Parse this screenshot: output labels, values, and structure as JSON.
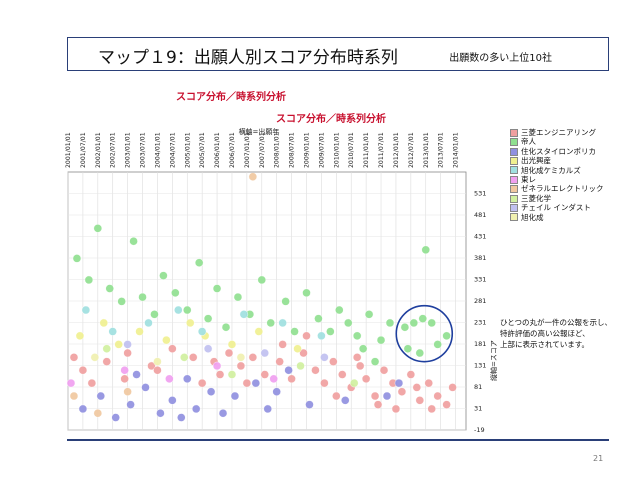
{
  "header": {
    "title": "マップ１9：出願人別スコア分布時系列",
    "note": "出願数の多い上位10社"
  },
  "subtitle1": "スコア分布／時系列分析",
  "subtitle2": "スコア分布／時系列分析",
  "note_lines": [
    "ひとつの丸が一件の公報を示し、",
    "特許評価の高い公報ほど、",
    "上部に表示されています。"
  ],
  "page_number": "21",
  "colors": {
    "frame": "#2a3f78",
    "highlight_circle": "#1f3f9e",
    "subtitle": "#c8102e"
  },
  "chart_data": {
    "type": "scatter",
    "xlabel": "横軸=出願年",
    "ylabel": "縦軸=スコア",
    "x_ticks": [
      "2001/01/01",
      "2001/07/01",
      "2002/01/01",
      "2002/07/01",
      "2003/01/01",
      "2003/07/01",
      "2004/01/01",
      "2004/07/01",
      "2005/01/01",
      "2005/07/01",
      "2006/01/01",
      "2006/07/01",
      "2007/01/01",
      "2007/07/01",
      "2008/01/01",
      "2008/07/01",
      "2009/01/01",
      "2009/07/01",
      "2010/01/01",
      "2010/07/01",
      "2011/01/01",
      "2011/07/01",
      "2012/01/01",
      "2012/07/01",
      "2013/01/01",
      "2013/07/01",
      "2014/01/01"
    ],
    "y_ticks": [
      531,
      481,
      431,
      381,
      331,
      281,
      231,
      181,
      131,
      81,
      31,
      -19
    ],
    "ylim": [
      -19,
      581
    ],
    "xlim": [
      2001.0,
      2014.35
    ],
    "series": [
      {
        "name": "三菱エンジニアリング",
        "color": "#f0a0a0",
        "points": [
          [
            2001.2,
            150
          ],
          [
            2001.5,
            120
          ],
          [
            2002.3,
            140
          ],
          [
            2003.0,
            160
          ],
          [
            2003.8,
            130
          ],
          [
            2004.5,
            170
          ],
          [
            2005.2,
            150
          ],
          [
            2005.9,
            140
          ],
          [
            2006.4,
            160
          ],
          [
            2006.8,
            130
          ],
          [
            2007.2,
            150
          ],
          [
            2007.6,
            110
          ],
          [
            2008.1,
            140
          ],
          [
            2008.5,
            100
          ],
          [
            2008.9,
            160
          ],
          [
            2009.3,
            120
          ],
          [
            2009.6,
            90
          ],
          [
            2009.9,
            140
          ],
          [
            2010.2,
            110
          ],
          [
            2010.5,
            80
          ],
          [
            2010.8,
            130
          ],
          [
            2011.0,
            100
          ],
          [
            2011.3,
            60
          ],
          [
            2011.6,
            120
          ],
          [
            2011.9,
            90
          ],
          [
            2012.2,
            70
          ],
          [
            2012.5,
            110
          ],
          [
            2012.8,
            50
          ],
          [
            2013.1,
            90
          ],
          [
            2013.4,
            60
          ],
          [
            2013.7,
            40
          ],
          [
            2013.9,
            80
          ],
          [
            2010.0,
            60
          ],
          [
            2010.7,
            150
          ],
          [
            2011.4,
            40
          ],
          [
            2012.0,
            30
          ],
          [
            2012.7,
            80
          ],
          [
            2013.2,
            30
          ],
          [
            2009.0,
            200
          ],
          [
            2008.2,
            180
          ],
          [
            2007.0,
            90
          ],
          [
            2006.1,
            110
          ],
          [
            2005.5,
            90
          ],
          [
            2004.0,
            120
          ],
          [
            2002.9,
            100
          ],
          [
            2001.8,
            90
          ]
        ]
      },
      {
        "name": "帝人",
        "color": "#90e090",
        "points": [
          [
            2001.3,
            380
          ],
          [
            2001.7,
            330
          ],
          [
            2002.0,
            450
          ],
          [
            2002.4,
            310
          ],
          [
            2002.8,
            280
          ],
          [
            2003.2,
            420
          ],
          [
            2003.5,
            290
          ],
          [
            2003.9,
            250
          ],
          [
            2004.2,
            340
          ],
          [
            2004.6,
            300
          ],
          [
            2005.0,
            260
          ],
          [
            2005.4,
            370
          ],
          [
            2005.7,
            240
          ],
          [
            2006.0,
            310
          ],
          [
            2006.3,
            220
          ],
          [
            2006.7,
            290
          ],
          [
            2007.1,
            250
          ],
          [
            2007.5,
            330
          ],
          [
            2007.8,
            230
          ],
          [
            2008.3,
            280
          ],
          [
            2008.6,
            210
          ],
          [
            2009.0,
            300
          ],
          [
            2009.4,
            240
          ],
          [
            2009.8,
            210
          ],
          [
            2010.1,
            260
          ],
          [
            2010.4,
            230
          ],
          [
            2010.7,
            200
          ],
          [
            2011.1,
            250
          ],
          [
            2011.5,
            190
          ],
          [
            2011.8,
            230
          ],
          [
            2012.3,
            220
          ],
          [
            2012.6,
            230
          ],
          [
            2012.9,
            240
          ],
          [
            2013.2,
            230
          ],
          [
            2013.4,
            180
          ],
          [
            2013.7,
            200
          ],
          [
            2013.0,
            400
          ],
          [
            2012.4,
            170
          ],
          [
            2012.8,
            160
          ],
          [
            2011.3,
            140
          ],
          [
            2010.9,
            170
          ]
        ]
      },
      {
        "name": "住化スタイロンポリカ",
        "color": "#9090e0",
        "points": [
          [
            2001.5,
            30
          ],
          [
            2002.1,
            60
          ],
          [
            2002.6,
            10
          ],
          [
            2003.1,
            40
          ],
          [
            2003.6,
            80
          ],
          [
            2004.1,
            20
          ],
          [
            2004.5,
            50
          ],
          [
            2005.0,
            100
          ],
          [
            2005.3,
            30
          ],
          [
            2005.8,
            70
          ],
          [
            2006.2,
            20
          ],
          [
            2006.6,
            60
          ],
          [
            2007.3,
            90
          ],
          [
            2007.7,
            30
          ],
          [
            2008.0,
            70
          ],
          [
            2008.4,
            120
          ],
          [
            2009.1,
            40
          ],
          [
            2010.3,
            50
          ],
          [
            2011.7,
            60
          ],
          [
            2012.1,
            90
          ],
          [
            2004.8,
            10
          ],
          [
            2003.3,
            110
          ]
        ]
      },
      {
        "name": "出光興産",
        "color": "#f0f090",
        "points": [
          [
            2001.4,
            200
          ],
          [
            2002.2,
            230
          ],
          [
            2002.7,
            180
          ],
          [
            2003.4,
            210
          ],
          [
            2004.3,
            190
          ],
          [
            2005.1,
            230
          ],
          [
            2005.6,
            200
          ],
          [
            2006.5,
            180
          ],
          [
            2007.4,
            210
          ],
          [
            2008.7,
            170
          ]
        ]
      },
      {
        "name": "旭化成ケミカルズ",
        "color": "#a0e0e0",
        "points": [
          [
            2001.6,
            260
          ],
          [
            2002.5,
            210
          ],
          [
            2003.7,
            230
          ],
          [
            2004.7,
            260
          ],
          [
            2005.5,
            210
          ],
          [
            2006.9,
            250
          ],
          [
            2008.2,
            230
          ],
          [
            2009.5,
            200
          ]
        ]
      },
      {
        "name": "東レ",
        "color": "#f0a0f0",
        "points": [
          [
            2001.1,
            90
          ],
          [
            2002.9,
            120
          ],
          [
            2004.4,
            100
          ],
          [
            2006.0,
            130
          ],
          [
            2007.9,
            100
          ]
        ]
      },
      {
        "name": "ゼネラルエレクトリック",
        "color": "#f0c8a0",
        "points": [
          [
            2001.2,
            60
          ],
          [
            2002.0,
            20
          ],
          [
            2003.0,
            70
          ],
          [
            2007.2,
            570
          ]
        ]
      },
      {
        "name": "三菱化学",
        "color": "#d0f0a0",
        "points": [
          [
            2002.3,
            170
          ],
          [
            2004.9,
            150
          ],
          [
            2006.5,
            110
          ],
          [
            2008.8,
            130
          ],
          [
            2010.6,
            90
          ]
        ]
      },
      {
        "name": "チェイル インダスト",
        "color": "#c0c0f0",
        "points": [
          [
            2003.0,
            180
          ],
          [
            2005.7,
            170
          ],
          [
            2007.6,
            160
          ],
          [
            2009.6,
            150
          ]
        ]
      },
      {
        "name": "旭化成",
        "color": "#f0f0b0",
        "points": [
          [
            2001.9,
            150
          ],
          [
            2004.0,
            140
          ],
          [
            2006.8,
            150
          ]
        ]
      }
    ],
    "highlight": {
      "x": 2012.95,
      "y": 205
    }
  }
}
